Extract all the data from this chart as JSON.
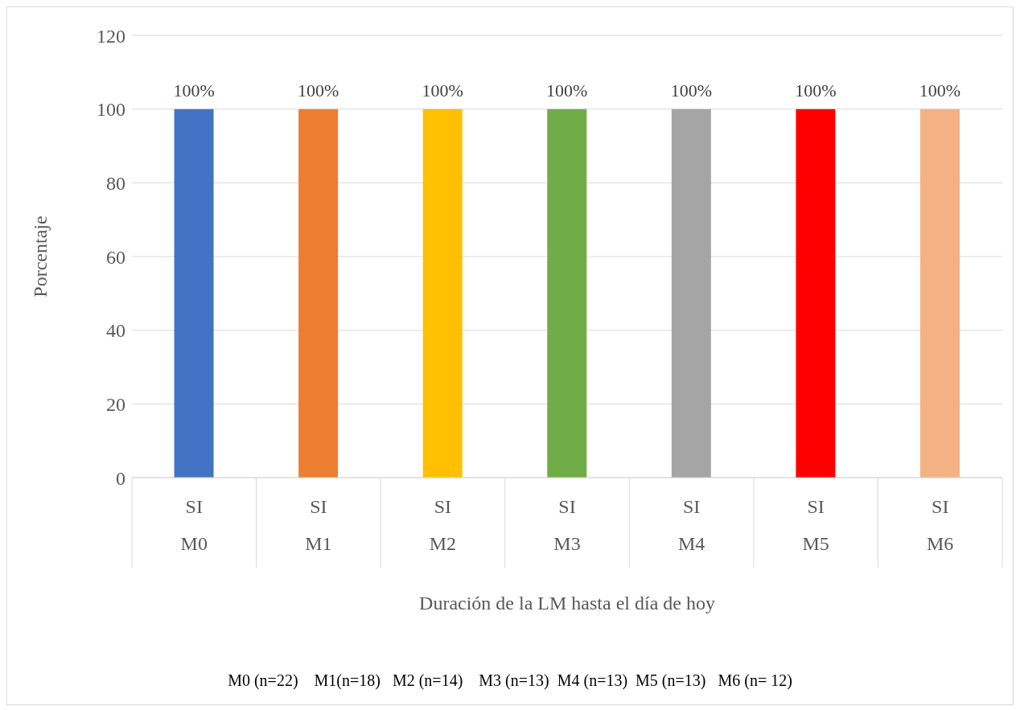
{
  "chart_data": {
    "type": "bar",
    "xlabel": "Duración de la LM hasta el día de hoy",
    "ylabel": "Porcentaje",
    "categories": [
      "SI\nM0",
      "SI\nM1",
      "SI\nM2",
      "SI\nM3",
      "SI\nM4",
      "SI\nM5",
      "SI\nM6"
    ],
    "values": [
      100,
      100,
      100,
      100,
      100,
      100,
      100
    ],
    "colors": [
      "#4472c4",
      "#ed7d31",
      "#ffc000",
      "#70ad47",
      "#a5a5a5",
      "#ff0000",
      "#f4b183"
    ],
    "value_labels": [
      "100%",
      "100%",
      "100%",
      "100%",
      "100%",
      "100%",
      "100%"
    ],
    "ylim": [
      0,
      120
    ],
    "yticks": [
      0,
      20,
      40,
      60,
      80,
      100,
      120
    ],
    "grid": "y",
    "legend": false,
    "annotations": [
      "M0 (n=22)    M1(n=18)   M2 (n=14)    M3 (n=13)  M4 (n=13)  M5 (n=13)   M6 (n= 12)"
    ]
  }
}
